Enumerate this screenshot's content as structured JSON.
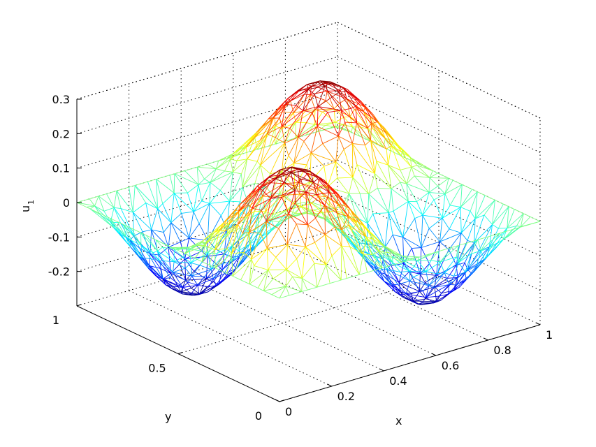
{
  "chart_data": {
    "type": "surface-mesh",
    "title": "",
    "xlabel": "x",
    "ylabel": "y",
    "zlabel": "u",
    "zlabel_subscript": "1",
    "xlim": [
      0,
      1
    ],
    "ylim": [
      0,
      1
    ],
    "zlim": [
      -0.3,
      0.3
    ],
    "x_ticks": [
      "0",
      "0.2",
      "0.4",
      "0.6",
      "0.8",
      "1"
    ],
    "x_tick_values": [
      0,
      0.2,
      0.4,
      0.6,
      0.8,
      1
    ],
    "y_ticks": [
      "0",
      "0.5",
      "1"
    ],
    "y_tick_values": [
      0,
      0.5,
      1
    ],
    "z_ticks": [
      "-0.2",
      "-0.1",
      "0",
      "0.1",
      "0.2",
      "0.3"
    ],
    "z_tick_values": [
      -0.2,
      -0.1,
      0,
      0.1,
      0.2,
      0.3
    ],
    "grid": true,
    "colormap": "jet",
    "surface": {
      "function": "u1(x,y) = 0.25 * sin(2*pi*x) * sin(2*pi*y)",
      "peak_value": 0.25,
      "trough_value": -0.25
    }
  }
}
